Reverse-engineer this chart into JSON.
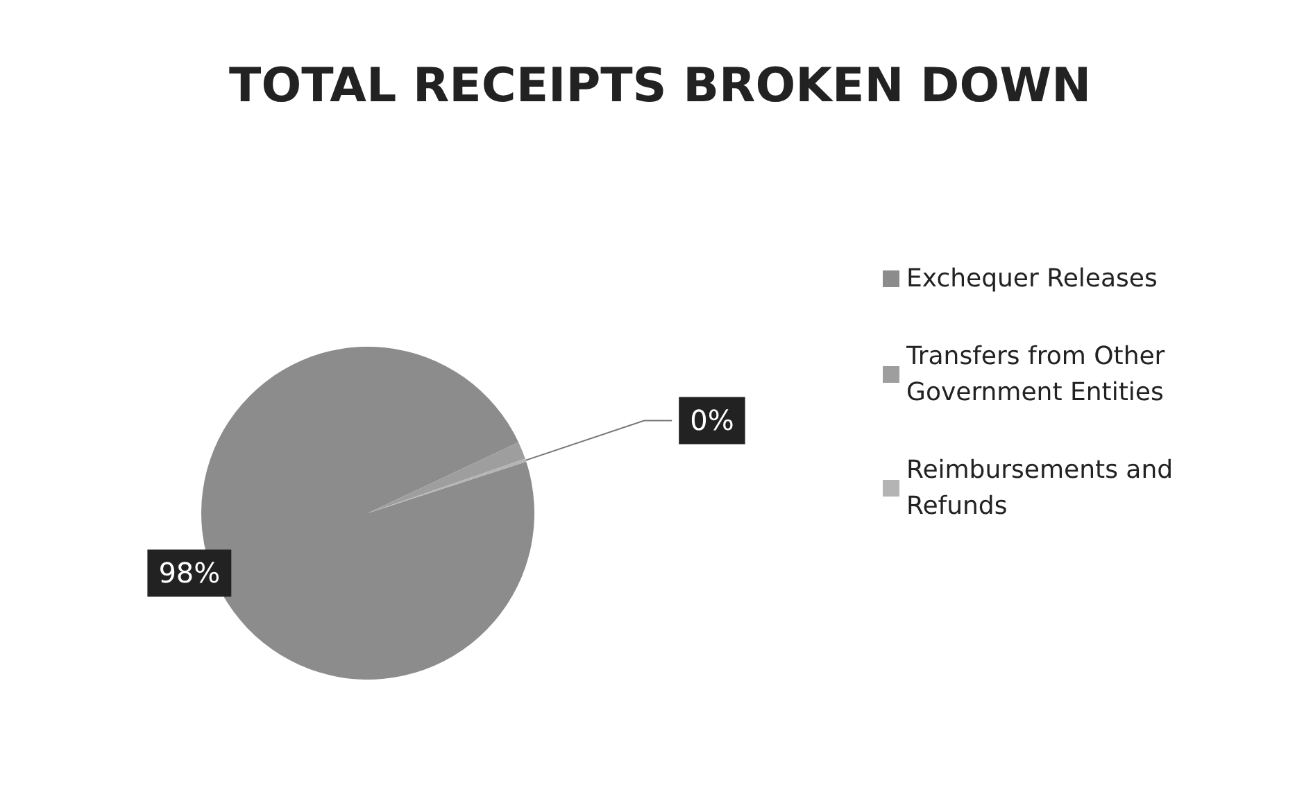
{
  "chart_data": {
    "type": "pie",
    "title": "TOTAL RECEIPTS BROKEN DOWN",
    "categories": [
      "Exchequer Releases",
      "Transfers from Other Government Entities",
      "Reimbursements and Refunds"
    ],
    "values": [
      98,
      1.7,
      0.3
    ],
    "colors": [
      "#8c8c8c",
      "#9e9e9e",
      "#b4b4b4"
    ],
    "value_labels": [
      "98%",
      null,
      "0%"
    ],
    "legend": "right"
  }
}
